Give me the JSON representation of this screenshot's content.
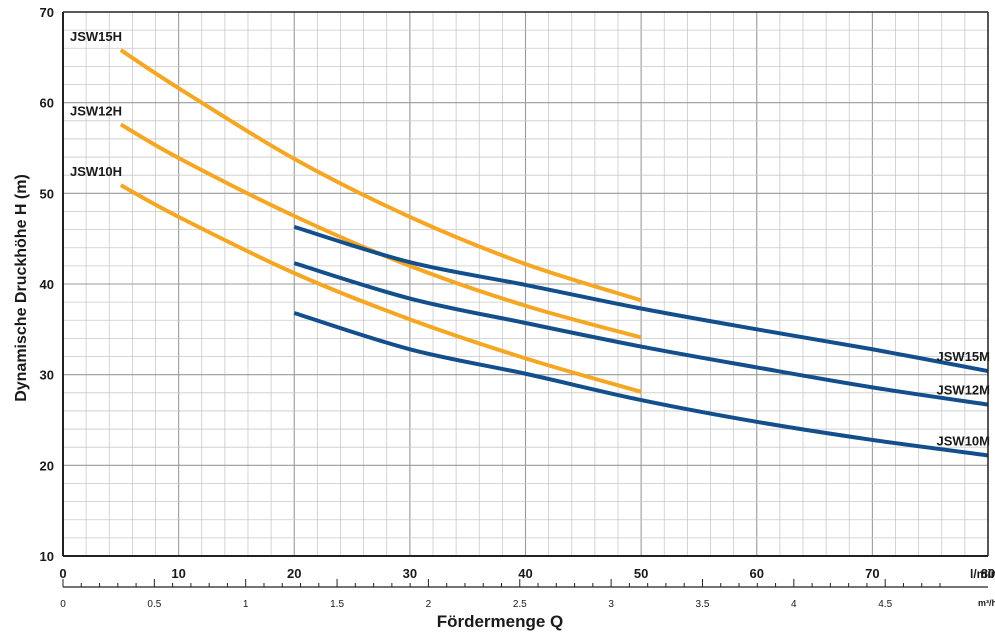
{
  "chart_data": {
    "type": "line",
    "ylabel": "Dynamische Druckhöhe H (m)",
    "xlabel": "Fördermenge Q",
    "x_unit_primary": "l/min",
    "x_unit_secondary": "m³/h",
    "xlim": [
      0,
      80
    ],
    "ylim": [
      10,
      70
    ],
    "x_ticks": [
      0,
      10,
      20,
      30,
      40,
      50,
      60,
      70,
      80
    ],
    "y_ticks": [
      10,
      20,
      30,
      40,
      50,
      60,
      70
    ],
    "x2_ticks": [
      0,
      0.5,
      1,
      1.5,
      2,
      2.5,
      3,
      3.5,
      4,
      4.5
    ],
    "grid": true,
    "series": [
      {
        "name": "JSW15H",
        "color": "#f5a623",
        "x": [
          5,
          10,
          20,
          30,
          40,
          50
        ],
        "y": [
          65.8,
          61.6,
          53.8,
          47.4,
          42.2,
          38.2
        ]
      },
      {
        "name": "JSW12H",
        "color": "#f5a623",
        "x": [
          5,
          10,
          20,
          30,
          40,
          50
        ],
        "y": [
          57.6,
          53.9,
          47.5,
          42.0,
          37.6,
          34.1
        ]
      },
      {
        "name": "JSW10H",
        "color": "#f5a623",
        "x": [
          5,
          10,
          20,
          30,
          40,
          50
        ],
        "y": [
          50.9,
          47.4,
          41.2,
          36.1,
          31.8,
          28.1
        ]
      },
      {
        "name": "JSW15M",
        "color": "#124f8c",
        "x": [
          20,
          30,
          40,
          50,
          60,
          70,
          80
        ],
        "y": [
          46.3,
          42.4,
          39.9,
          37.3,
          35.0,
          32.8,
          30.4
        ]
      },
      {
        "name": "JSW12M",
        "color": "#124f8c",
        "x": [
          20,
          30,
          40,
          50,
          60,
          70,
          80
        ],
        "y": [
          42.3,
          38.4,
          35.7,
          33.1,
          30.8,
          28.6,
          26.7
        ]
      },
      {
        "name": "JSW10M",
        "color": "#124f8c",
        "x": [
          20,
          30,
          40,
          50,
          60,
          70,
          80
        ],
        "y": [
          36.8,
          32.8,
          30.1,
          27.2,
          24.8,
          22.8,
          21.1
        ]
      }
    ]
  }
}
